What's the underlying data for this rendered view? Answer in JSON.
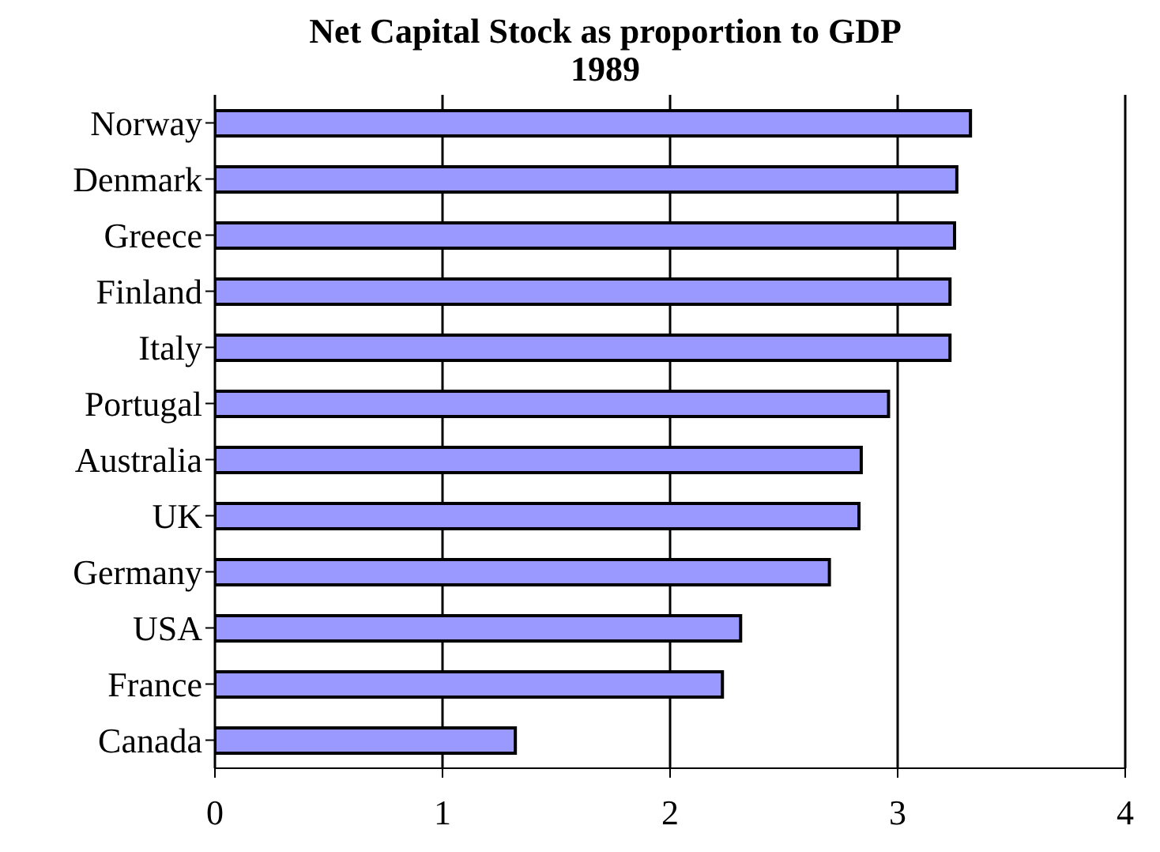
{
  "chart_data": {
    "type": "bar",
    "orientation": "horizontal",
    "title": "Net Capital Stock as proportion to GDP 1989",
    "categories": [
      "Norway",
      "Denmark",
      "Greece",
      "Finland",
      "Italy",
      "Portugal",
      "Australia",
      "UK",
      "Germany",
      "USA",
      "France",
      "Canada"
    ],
    "values": [
      3.32,
      3.26,
      3.25,
      3.23,
      3.23,
      2.96,
      2.84,
      2.83,
      2.7,
      2.31,
      2.23,
      1.32
    ],
    "color": "#9999ff",
    "xlim": [
      0,
      4
    ],
    "xticks": [
      0,
      1,
      2,
      3,
      4
    ],
    "grid": "x"
  }
}
